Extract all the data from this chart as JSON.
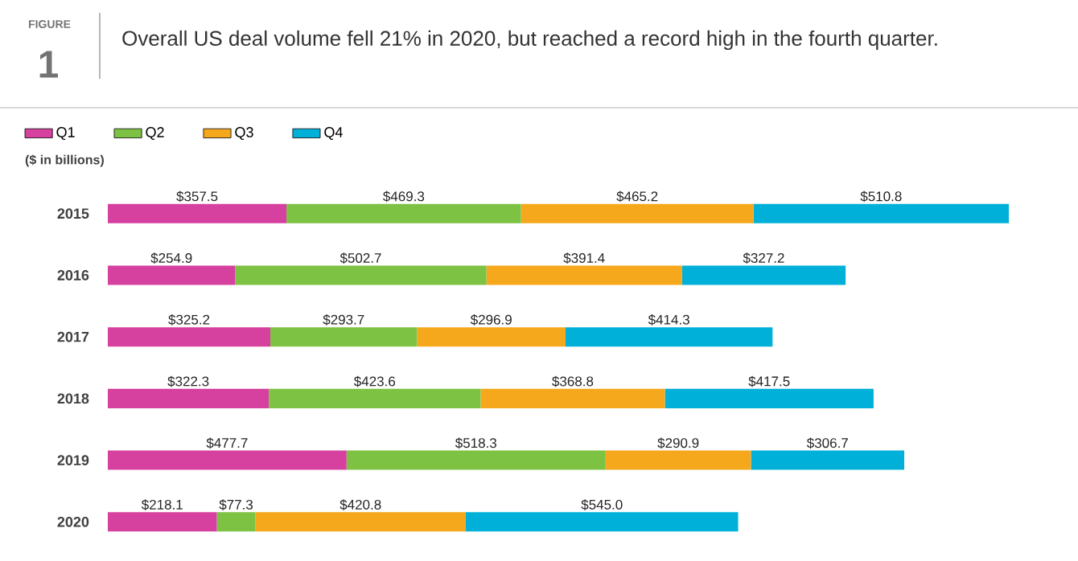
{
  "chart_data": {
    "type": "bar",
    "orientation": "horizontal",
    "stacked": true,
    "title": "Overall US deal volume fell 21% in 2020, but reached a record high in the fourth quarter.",
    "subtitle": "($ in billions)",
    "annotations": [
      "FIGURE",
      "1"
    ],
    "categories": [
      "2015",
      "2016",
      "2017",
      "2018",
      "2019",
      "2020"
    ],
    "series": [
      {
        "name": "Q1",
        "color": "#d6409f",
        "values": [
          357.5,
          254.9,
          325.2,
          322.3,
          477.7,
          218.1
        ],
        "value_labels": [
          "$357.5",
          "$254.9",
          "$325.2",
          "$322.3",
          "$477.7",
          "$218.1"
        ]
      },
      {
        "name": "Q2",
        "color": "#7dc242",
        "values": [
          469.3,
          502.7,
          293.7,
          423.6,
          518.3,
          77.3
        ],
        "value_labels": [
          "$469.3",
          "$502.7",
          "$293.7",
          "$423.6",
          "$518.3",
          "$77.3"
        ]
      },
      {
        "name": "Q3",
        "color": "#f5a81c",
        "values": [
          465.2,
          391.4,
          296.9,
          368.8,
          290.9,
          420.8
        ],
        "value_labels": [
          "$465.2",
          "$391.4",
          "$296.9",
          "$368.8",
          "$290.9",
          "$420.8"
        ]
      },
      {
        "name": "Q4",
        "color": "#00b0d8",
        "values": [
          510.8,
          327.2,
          414.3,
          417.5,
          306.7,
          545.0
        ],
        "value_labels": [
          "$510.8",
          "$327.2",
          "$414.3",
          "$417.5",
          "$306.7",
          "$545.0"
        ]
      }
    ],
    "legend": "top left"
  }
}
